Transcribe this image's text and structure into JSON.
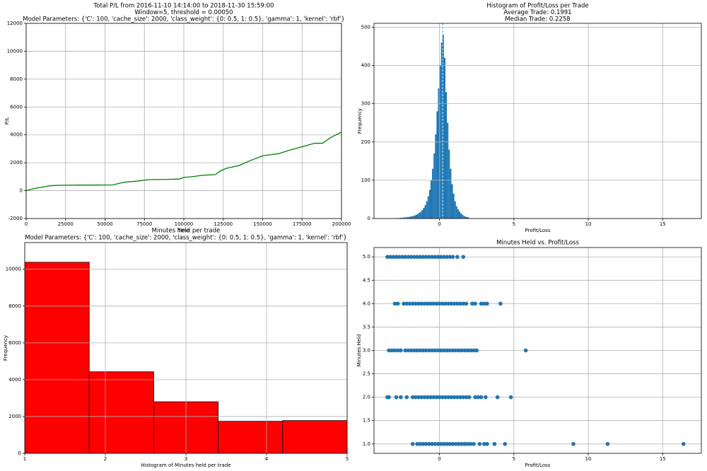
{
  "chart_data": [
    {
      "type": "line",
      "title": [
        "Total P/L from 2016-11-10 14:14:00 to 2018-11-30 15:59:00",
        "Window=5, threshold = 0.00050",
        "Model Parameters: {'C': 100, 'cache_size': 2000, 'class_weight': {0: 0.5, 1: 0.5}, 'gamma': 1, 'kernel': 'rbf'}"
      ],
      "xlabel": "Time",
      "ylabel": "P/L",
      "x": [
        0,
        5000,
        10000,
        15000,
        20000,
        25000,
        35000,
        45000,
        55000,
        58000,
        62000,
        70000,
        78000,
        90000,
        97000,
        100000,
        105000,
        112000,
        120000,
        123000,
        127000,
        135000,
        142000,
        150000,
        160000,
        167000,
        175000,
        183000,
        188000,
        193000,
        200000
      ],
      "values": [
        0,
        150,
        250,
        350,
        380,
        390,
        400,
        400,
        410,
        500,
        600,
        680,
        790,
        810,
        830,
        950,
        1000,
        1100,
        1150,
        1400,
        1600,
        1800,
        2150,
        2500,
        2650,
        2900,
        3150,
        3400,
        3400,
        3800,
        4200
      ],
      "color": "#008000",
      "xlim": [
        0,
        200000
      ],
      "xticks": [
        0,
        25000,
        50000,
        75000,
        100000,
        125000,
        150000,
        175000,
        200000
      ],
      "ylim": [
        -2000,
        12000
      ],
      "yticks": [
        -2000,
        0,
        2000,
        4000,
        6000,
        8000,
        10000,
        12000
      ],
      "grid": true
    },
    {
      "type": "histogram",
      "title": [
        "Histogram of Profit/Loss per Trade",
        "Average Trade: 0.1991",
        "Median Trade: 0.2258"
      ],
      "xlabel": "Profit/Loss",
      "ylabel": "Frequency",
      "bins": [
        -3.0,
        -2.9,
        -2.8,
        -2.7,
        -2.6,
        -2.5,
        -2.4,
        -2.3,
        -2.2,
        -2.1,
        -2.0,
        -1.9,
        -1.8,
        -1.7,
        -1.6,
        -1.5,
        -1.4,
        -1.3,
        -1.2,
        -1.1,
        -1.0,
        -0.9,
        -0.8,
        -0.7,
        -0.6,
        -0.5,
        -0.4,
        -0.3,
        -0.2,
        -0.1,
        0.0,
        0.1,
        0.2,
        0.3,
        0.4,
        0.5,
        0.6,
        0.7,
        0.8,
        0.9,
        1.0,
        1.1,
        1.2,
        1.3,
        1.4,
        1.5,
        1.6,
        1.7,
        1.8,
        1.9,
        2.0
      ],
      "values": [
        1,
        1,
        1,
        2,
        2,
        2,
        3,
        3,
        4,
        4,
        5,
        6,
        7,
        8,
        10,
        12,
        15,
        18,
        22,
        28,
        35,
        45,
        58,
        75,
        100,
        130,
        170,
        220,
        280,
        340,
        400,
        460,
        480,
        420,
        330,
        250,
        180,
        130,
        90,
        65,
        45,
        32,
        24,
        18,
        13,
        10,
        7,
        5,
        4,
        3
      ],
      "color": "#1f77b4",
      "vlines": [
        0.1991,
        0.2258
      ],
      "vline_color": "#8fc1e3",
      "xlim": [
        -4.4,
        17.6
      ],
      "xticks": [
        0,
        5,
        10,
        15
      ],
      "ylim": [
        0,
        510
      ],
      "yticks": [
        0,
        100,
        200,
        300,
        400,
        500
      ],
      "grid": true
    },
    {
      "type": "histogram",
      "title": [
        "Minutes held per trade",
        "Model Parameters: {'C': 100, 'cache_size': 2000, 'class_weight': {0: 0.5, 1: 0.5}, 'gamma': 1, 'kernel': 'rbf'}"
      ],
      "xlabel": "Histogram of Minutes held per trade",
      "ylabel": "Frequency",
      "bins": [
        1,
        1.8,
        2.6,
        3.4,
        4.2,
        5
      ],
      "values": [
        10380,
        4430,
        2800,
        1740,
        1780
      ],
      "color": "#ff0000",
      "edgecolor": "#000000",
      "xlim": [
        1,
        5
      ],
      "xticks": [
        1,
        2,
        3,
        4,
        5
      ],
      "ylim": [
        0,
        11450
      ],
      "yticks": [
        0,
        2000,
        4000,
        6000,
        8000,
        10000
      ],
      "grid": true
    },
    {
      "type": "scatter",
      "title": [
        "Minutes Held vs. Profit/Loss"
      ],
      "xlabel": "Profit/Loss",
      "ylabel": "Minutes Held",
      "color": "#1f77b4",
      "series": [
        {
          "x": [
            -3.5,
            -3.3,
            -3.1,
            -2.9,
            -2.7,
            -2.5,
            -2.3,
            -2.1,
            -1.9,
            -1.7,
            -1.5,
            -1.3,
            -1.1,
            -0.9,
            -0.7,
            -0.5,
            -0.3,
            -0.1,
            0.1,
            0.3,
            0.5,
            0.7,
            0.9,
            1.2,
            1.6
          ],
          "values": [
            5,
            5,
            5,
            5,
            5,
            5,
            5,
            5,
            5,
            5,
            5,
            5,
            5,
            5,
            5,
            5,
            5,
            5,
            5,
            5,
            5,
            5,
            5,
            5,
            5
          ]
        },
        {
          "x": [
            -3.0,
            -2.8,
            -2.4,
            -2.2,
            -2.0,
            -1.8,
            -1.6,
            -1.4,
            -1.2,
            -1.0,
            -0.8,
            -0.6,
            -0.4,
            -0.2,
            0.0,
            0.2,
            0.4,
            0.6,
            0.8,
            1.0,
            1.2,
            1.4,
            1.6,
            1.8,
            2.2,
            2.4,
            2.8,
            3.0,
            3.2,
            4.1
          ],
          "values": [
            4,
            4,
            4,
            4,
            4,
            4,
            4,
            4,
            4,
            4,
            4,
            4,
            4,
            4,
            4,
            4,
            4,
            4,
            4,
            4,
            4,
            4,
            4,
            4,
            4,
            4,
            4,
            4,
            4,
            4
          ]
        },
        {
          "x": [
            -3.4,
            -3.2,
            -3.0,
            -2.8,
            -2.6,
            -2.3,
            -2.1,
            -1.9,
            -1.7,
            -1.5,
            -1.3,
            -1.1,
            -0.9,
            -0.7,
            -0.5,
            -0.3,
            -0.1,
            0.1,
            0.3,
            0.5,
            0.7,
            0.9,
            1.1,
            1.3,
            1.5,
            1.7,
            1.9,
            2.1,
            2.3,
            2.5,
            5.8
          ],
          "values": [
            3,
            3,
            3,
            3,
            3,
            3,
            3,
            3,
            3,
            3,
            3,
            3,
            3,
            3,
            3,
            3,
            3,
            3,
            3,
            3,
            3,
            3,
            3,
            3,
            3,
            3,
            3,
            3,
            3,
            3,
            3
          ]
        },
        {
          "x": [
            -3.5,
            -3.4,
            -2.9,
            -2.6,
            -2.2,
            -1.8,
            -1.6,
            -1.4,
            -1.2,
            -1.0,
            -0.8,
            -0.6,
            -0.4,
            -0.2,
            0.0,
            0.2,
            0.4,
            0.6,
            0.8,
            1.0,
            1.2,
            1.4,
            1.6,
            1.8,
            2.0,
            2.4,
            2.6,
            2.8,
            3.1,
            3.9,
            4.8
          ],
          "values": [
            2,
            2,
            2,
            2,
            2,
            2,
            2,
            2,
            2,
            2,
            2,
            2,
            2,
            2,
            2,
            2,
            2,
            2,
            2,
            2,
            2,
            2,
            2,
            2,
            2,
            2,
            2,
            2,
            2,
            2,
            2
          ]
        },
        {
          "x": [
            -1.8,
            -1.5,
            -1.3,
            -1.1,
            -0.9,
            -0.7,
            -0.5,
            -0.3,
            -0.1,
            0.1,
            0.3,
            0.5,
            0.7,
            0.9,
            1.1,
            1.3,
            1.5,
            1.7,
            1.9,
            2.1,
            2.3,
            2.7,
            3.0,
            3.2,
            3.7,
            4.4,
            9.0,
            11.3,
            16.4
          ],
          "values": [
            1,
            1,
            1,
            1,
            1,
            1,
            1,
            1,
            1,
            1,
            1,
            1,
            1,
            1,
            1,
            1,
            1,
            1,
            1,
            1,
            1,
            1,
            1,
            1,
            1,
            1,
            1,
            1,
            1
          ]
        }
      ],
      "xlim": [
        -4.4,
        17.6
      ],
      "xticks": [
        0,
        5,
        10,
        15
      ],
      "ylim": [
        0.8,
        5.2
      ],
      "yticks": [
        {
          "value": 1.0,
          "label": "1.0"
        },
        1.5,
        {
          "value": 2.0,
          "label": "2.0"
        },
        2.5,
        {
          "value": 3.0,
          "label": "3.0"
        },
        3.5,
        {
          "value": 4.0,
          "label": "4.0"
        },
        4.5,
        {
          "value": 5.0,
          "label": "5.0"
        }
      ],
      "grid": true
    }
  ]
}
